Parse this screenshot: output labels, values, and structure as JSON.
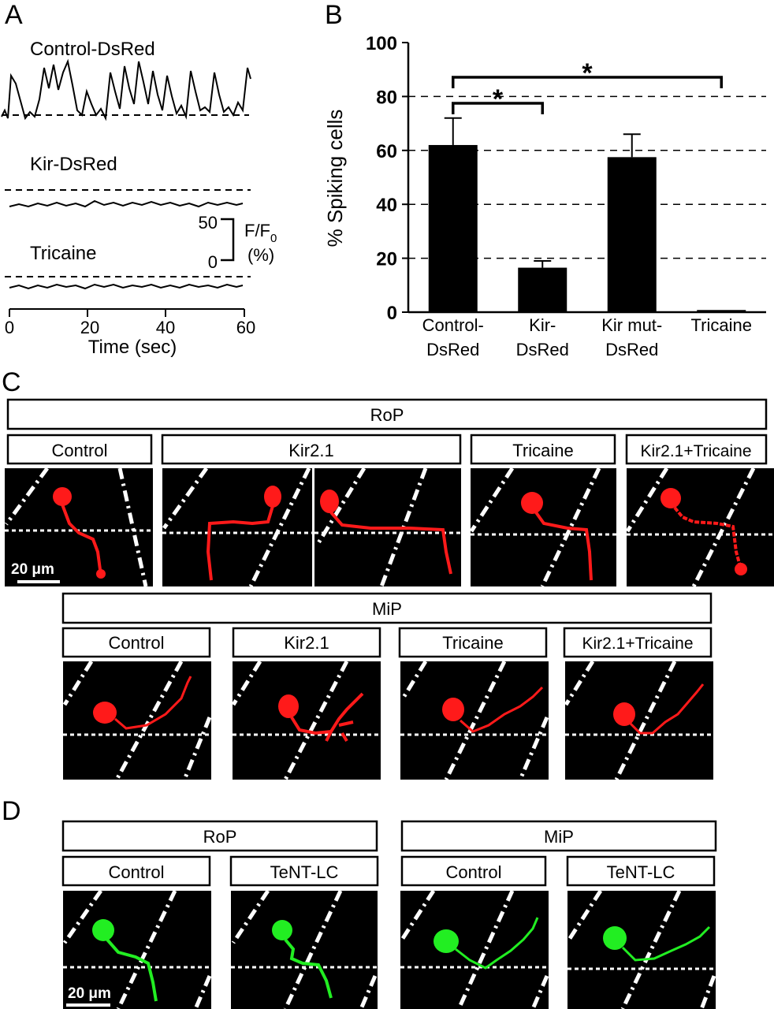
{
  "panels": {
    "a": "A",
    "b": "B",
    "c": "C",
    "d": "D"
  },
  "panel_a": {
    "traces": [
      {
        "label": "Control-DsRed"
      },
      {
        "label": "Kir-DsRed"
      },
      {
        "label": "Tricaine"
      }
    ],
    "scale_bar": {
      "top": "50",
      "bottom": "0",
      "unit_line1": "F/F",
      "unit_sub": "0",
      "unit_line2": "(%)"
    },
    "time_axis": {
      "ticks": [
        "0",
        "20",
        "40",
        "60"
      ],
      "label": "Time (sec)"
    }
  },
  "chart_data": {
    "type": "bar",
    "categories": [
      [
        "Control-",
        "DsRed"
      ],
      [
        "Kir-",
        "DsRed"
      ],
      [
        "Kir mut-",
        "DsRed"
      ],
      [
        "Tricaine"
      ]
    ],
    "values": [
      62,
      16.5,
      57.5,
      0.8
    ],
    "errors": [
      10,
      2.5,
      8.5,
      0
    ],
    "ylabel": "% Spiking cells",
    "ylim": [
      0,
      100
    ],
    "yticks": [
      "0",
      "20",
      "40",
      "60",
      "80",
      "100"
    ],
    "grid": "dashed horizontal at 20, 40, 60, 80",
    "significance": [
      {
        "from": 0,
        "to": 1,
        "label": "*"
      },
      {
        "from": 0,
        "to": 3,
        "label": "*"
      }
    ],
    "bar_color": "#000000"
  },
  "panel_c": {
    "rop_header": "RoP",
    "rop_labels": [
      "Control",
      "Kir2.1",
      "Tricaine",
      "Kir2.1+Tricaine"
    ],
    "mip_header": "MiP",
    "mip_labels": [
      "Control",
      "Kir2.1",
      "Tricaine",
      "Kir2.1+Tricaine"
    ],
    "scale_label": "20 μm",
    "neuron_color": "#ff1a1a"
  },
  "panel_d": {
    "rop_header": "RoP",
    "rop_labels": [
      "Control",
      "TeNT-LC"
    ],
    "mip_header": "MiP",
    "mip_labels": [
      "Control",
      "TeNT-LC"
    ],
    "scale_label": "20 μm",
    "neuron_color": "#22ee22"
  }
}
